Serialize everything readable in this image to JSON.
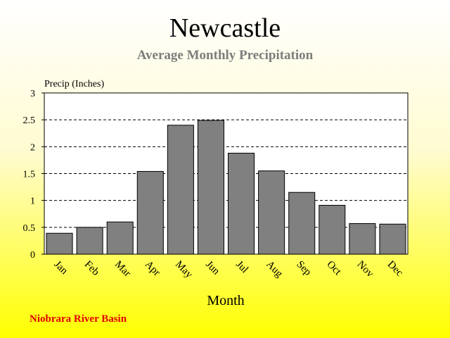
{
  "chart_data": {
    "type": "bar",
    "title": "Newcastle",
    "subtitle": "Average Monthly Precipitation",
    "xlabel": "Month",
    "ylabel": "Precip (Inches)",
    "categories": [
      "Jan",
      "Feb",
      "Mar",
      "Apr",
      "May",
      "Jun",
      "Jul",
      "Aug",
      "Sep",
      "Oct",
      "Nov",
      "Dec"
    ],
    "values": [
      0.39,
      0.5,
      0.6,
      1.54,
      2.4,
      2.49,
      1.88,
      1.55,
      1.15,
      0.91,
      0.57,
      0.56
    ],
    "ylim": [
      0,
      3
    ],
    "yticks": [
      "0",
      "0.5",
      "1",
      "1.5",
      "2",
      "2.5",
      "3"
    ],
    "grid": true,
    "bar_color": "#808080"
  },
  "footer": "Niobrara River Basin"
}
